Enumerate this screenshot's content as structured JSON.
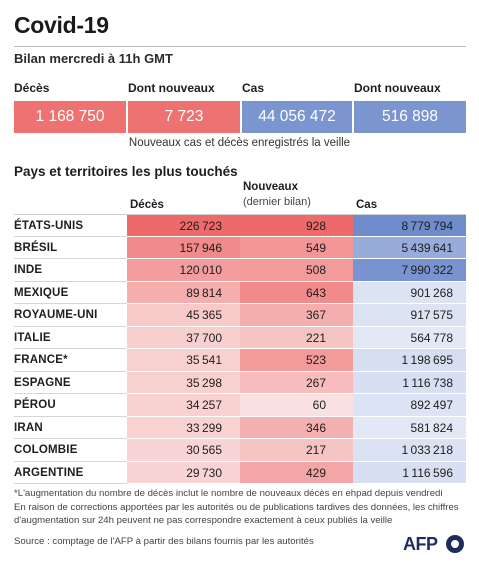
{
  "header": {
    "title": "Covid-19",
    "subtitle": "Bilan mercredi à 11h GMT"
  },
  "kpis": [
    {
      "label": "Décès",
      "value": "1 168 750",
      "color": "#ee7272"
    },
    {
      "label": "Dont nouveaux",
      "value": "7 723",
      "color": "#ee7272"
    },
    {
      "label": "Cas",
      "value": "44 056 472",
      "color": "#7a95cf"
    },
    {
      "label": "Dont nouveaux",
      "value": "516 898",
      "color": "#7a95cf"
    }
  ],
  "kpi_note": "Nouveaux cas et décès enregistrés la veille",
  "section_title": "Pays et territoires les plus touchés",
  "chart_data": {
    "type": "table",
    "columns": [
      "Décès",
      "Nouveaux",
      "Cas"
    ],
    "columns_sub": [
      "",
      "(dernier bilan)",
      ""
    ],
    "rows": [
      {
        "country": "ÉTATS-UNIS",
        "deces": 226723,
        "nouveaux": 928,
        "cas": 8779794
      },
      {
        "country": "BRÉSIL",
        "deces": 157946,
        "nouveaux": 549,
        "cas": 5439641
      },
      {
        "country": "INDE",
        "deces": 120010,
        "nouveaux": 508,
        "cas": 7990322
      },
      {
        "country": "MEXIQUE",
        "deces": 89814,
        "nouveaux": 643,
        "cas": 901268
      },
      {
        "country": "ROYAUME-UNI",
        "deces": 45365,
        "nouveaux": 367,
        "cas": 917575
      },
      {
        "country": "ITALIE",
        "deces": 37700,
        "nouveaux": 221,
        "cas": 564778
      },
      {
        "country": "FRANCE*",
        "deces": 35541,
        "nouveaux": 523,
        "cas": 1198695
      },
      {
        "country": "ESPAGNE",
        "deces": 35298,
        "nouveaux": 267,
        "cas": 1116738
      },
      {
        "country": "PÉROU",
        "deces": 34257,
        "nouveaux": 60,
        "cas": 892497
      },
      {
        "country": "IRAN",
        "deces": 33299,
        "nouveaux": 346,
        "cas": 581824
      },
      {
        "country": "COLOMBIE",
        "deces": 30565,
        "nouveaux": 217,
        "cas": 1033218
      },
      {
        "country": "ARGENTINE",
        "deces": 29730,
        "nouveaux": 429,
        "cas": 1116596
      }
    ],
    "colors": {
      "deaths": "#ee6a6a",
      "cases": "#6f8ccd"
    }
  },
  "footnotes": [
    "*L'augmentation du nombre de décès inclut le nombre de nouveaux décès en ehpad depuis vendredi",
    "En raison de corrections apportées par les autorités ou de publications tardives des données, les chiffres",
    "d'augmentation sur 24h peuvent ne pas correspondre exactement à ceux publiés la veille",
    "Source : comptage de l'AFP à partir des bilans fournis par les autorités"
  ],
  "logo": "AFP"
}
